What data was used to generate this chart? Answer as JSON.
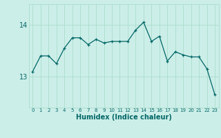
{
  "x": [
    0,
    1,
    2,
    3,
    4,
    5,
    6,
    7,
    8,
    9,
    10,
    11,
    12,
    13,
    14,
    15,
    16,
    17,
    18,
    19,
    20,
    21,
    22,
    23
  ],
  "y": [
    13.1,
    13.4,
    13.4,
    13.25,
    13.55,
    13.75,
    13.75,
    13.62,
    13.72,
    13.65,
    13.68,
    13.68,
    13.68,
    13.9,
    14.05,
    13.68,
    13.78,
    13.3,
    13.48,
    13.42,
    13.38,
    13.38,
    13.15,
    12.65
  ],
  "line_color": "#006666",
  "bg_color": "#cceee8",
  "grid_color": "#aaddcc",
  "xlabel": "Humidex (Indice chaleur)",
  "yticks": [
    13,
    14
  ],
  "ylim": [
    12.4,
    14.4
  ],
  "xlim": [
    -0.5,
    23.5
  ]
}
